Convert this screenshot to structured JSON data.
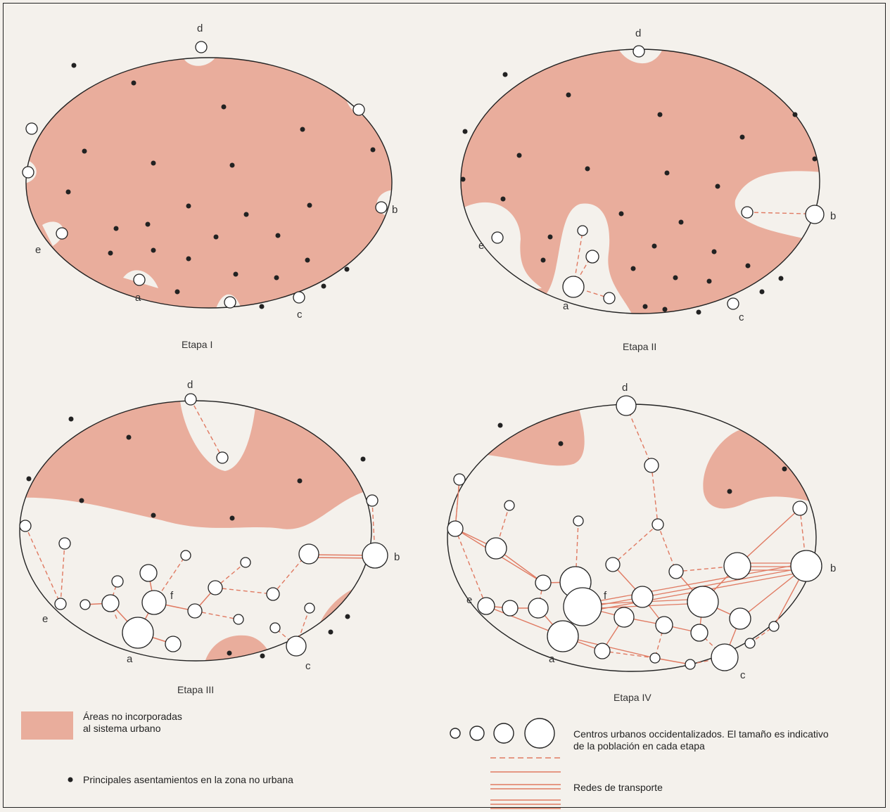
{
  "panels": [
    {
      "title": "Etapa I"
    },
    {
      "title": "Etapa II"
    },
    {
      "title": "Etapa III"
    },
    {
      "title": "Etapa IV"
    }
  ],
  "node_labels": {
    "a": "a",
    "b": "b",
    "c": "c",
    "d": "d",
    "e": "e",
    "f": "f"
  },
  "legend": {
    "area_line1": "Áreas no incorporadas",
    "area_line2": "al sistema urbano",
    "settlements": "Principales asentamientos en la zona no urbana",
    "centers_line1": "Centros urbanos occidentalizados. El tamaño es indicativo",
    "centers_line2": "de la población en cada etapa",
    "transport": "Redes de transporte"
  },
  "colors": {
    "area": "#e9ad9c",
    "network": "#e07a62",
    "outline": "#222222",
    "dot": "#222222"
  }
}
